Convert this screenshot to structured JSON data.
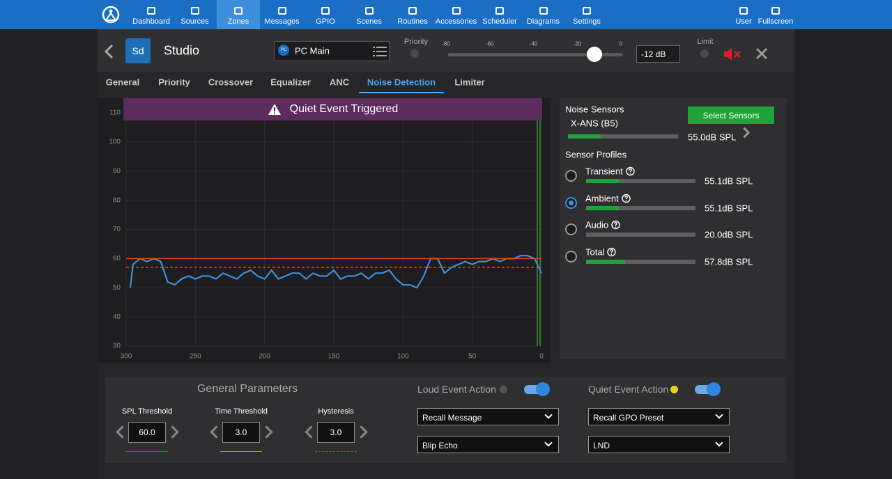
{
  "nav": {
    "items": [
      "Dashboard",
      "Sources",
      "Zones",
      "Messages",
      "GPIO",
      "Scenes",
      "Routines",
      "Accessories",
      "Scheduler",
      "Diagrams",
      "Settings"
    ],
    "active": 2,
    "right": [
      "User",
      "Fullscreen"
    ]
  },
  "zone": {
    "avatar": "Sd",
    "name": "Studio",
    "source_icon": "PC",
    "source": "PC Main",
    "priority_label": "Priority",
    "limit_label": "Limit",
    "volume": {
      "min": -80,
      "max": 0,
      "ticks": [
        -80,
        -60,
        -40,
        -20,
        0
      ],
      "value": {
        "value": -12,
        "label": "-12 dB"
      }
    }
  },
  "tabs": {
    "items": [
      "General",
      "Priority",
      "Crossover",
      "Equalizer",
      "ANC",
      "Noise Detection",
      "Limiter"
    ],
    "active": 5
  },
  "chart_data": {
    "type": "line",
    "banner": "Quiet Event Triggered",
    "color": "#3b8fd9",
    "x": [
      297,
      295,
      290,
      285,
      280,
      275,
      270,
      265,
      260,
      255,
      250,
      245,
      240,
      235,
      230,
      225,
      220,
      215,
      210,
      205,
      200,
      195,
      190,
      185,
      180,
      175,
      170,
      165,
      160,
      155,
      150,
      145,
      140,
      135,
      130,
      125,
      120,
      115,
      110,
      105,
      100,
      95,
      90,
      85,
      80,
      75,
      70,
      65,
      60,
      55,
      50,
      45,
      40,
      35,
      30,
      25,
      20,
      15,
      10,
      5,
      0
    ],
    "values": [
      50,
      58,
      60,
      59,
      60,
      59,
      52,
      51,
      53,
      54,
      53,
      54,
      54,
      53,
      55,
      54,
      53,
      55,
      56,
      54,
      53,
      56,
      53,
      54,
      55,
      55,
      53,
      55,
      54,
      54,
      56,
      53,
      54,
      54,
      55,
      53,
      55,
      55,
      56,
      53,
      51,
      51,
      50,
      54,
      60,
      60,
      55,
      57,
      58,
      59,
      58,
      59,
      59,
      60,
      59,
      60,
      60,
      61,
      61,
      60,
      55
    ],
    "xlim": [
      300,
      0
    ],
    "ylim": [
      30,
      110
    ],
    "xticks": [
      300,
      250,
      200,
      150,
      100,
      50,
      0
    ],
    "yticks": [
      30,
      40,
      50,
      60,
      70,
      80,
      90,
      100,
      110
    ],
    "grid": true,
    "reference_lines": [
      {
        "value": 60,
        "color": "#d9441f",
        "dashed": false
      },
      {
        "value": 57,
        "color": "#d9441f",
        "dashed": true
      }
    ],
    "markers": {
      "x": [
        3,
        1
      ],
      "color": "#3fae3f"
    }
  },
  "sensors": {
    "title": "Noise Sensors",
    "button": "Select Sensors",
    "meter_range": [
      40,
      90
    ],
    "sensor": {
      "name": "X-ANS (B5)",
      "level": {
        "value": 55.0,
        "label": "55.0dB SPL"
      }
    },
    "profiles_title": "Sensor Profiles",
    "selected": 1,
    "profiles": [
      {
        "name": "Transient",
        "level": {
          "value": 55.1,
          "label": "55.1dB SPL"
        }
      },
      {
        "name": "Ambient",
        "level": {
          "value": 55.1,
          "label": "55.1dB SPL"
        }
      },
      {
        "name": "Audio",
        "level": {
          "value": 20.0,
          "label": "20.0dB SPL"
        }
      },
      {
        "name": "Total",
        "level": {
          "value": 57.8,
          "label": "57.8dB SPL"
        }
      }
    ]
  },
  "parameters": {
    "title": "General Parameters",
    "fields": [
      {
        "label": "SPL Threshold",
        "value": "60.0",
        "color": "#c0392b",
        "dashed": false
      },
      {
        "label": "Time Threshold",
        "value": "3.0",
        "color": "#5cb82e",
        "dashed": false
      },
      {
        "label": "Hysteresis",
        "value": "3.0",
        "color": "#c0392b",
        "dashed": true
      }
    ],
    "actions": [
      {
        "label": "Loud Event Action",
        "indicator": "#555555",
        "enabled": true,
        "selects": [
          "Recall Message",
          "Blip Echo"
        ]
      },
      {
        "label": "Quiet Event Action",
        "indicator": "#e8d21d",
        "enabled": true,
        "selects": [
          "Recall GPO Preset",
          "LND"
        ]
      }
    ]
  }
}
